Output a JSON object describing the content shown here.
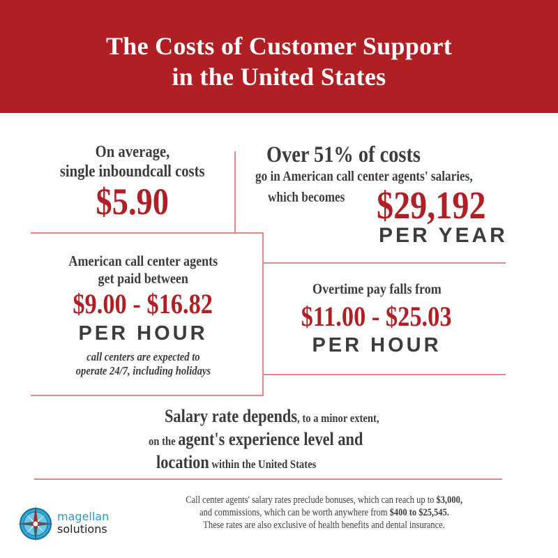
{
  "header": {
    "title_line1": "The Costs of Customer Support",
    "title_line2": "in the United States",
    "background_color": "#b01f24"
  },
  "blocks": {
    "inbound": {
      "line1": "On average,",
      "line2": "single inboundcall costs",
      "value": "$5.90"
    },
    "salaries": {
      "headline": "Over 51% of costs",
      "line2": "go in American call center agents' salaries,",
      "line3": "which becomes",
      "value": "$29,192",
      "unit": "PER YEAR"
    },
    "hourly": {
      "line1": "American call center agents",
      "line2": "get paid between",
      "value": "$9.00 - $16.82",
      "unit": "PER HOUR",
      "note_line1": "call centers are expected to",
      "note_line2": "operate 24/7, including holidays"
    },
    "overtime": {
      "line1": "Overtime pay falls from",
      "value": "$11.00 - $25.03",
      "unit": "PER HOUR"
    },
    "salary_rate": {
      "l1_bold": "Salary rate depends",
      "l1_rest": ", to a minor extent,",
      "l2_pre": "on the ",
      "l2_bold": "agent's experience level and",
      "l3_bold": "location",
      "l3_rest": " within the United States"
    }
  },
  "footer": {
    "line1_pre": "Call center agents' salary rates preclude bonuses, which can reach up to ",
    "line1_bold": "$3,000,",
    "line2_pre": "and commissions, which can be worth anywhere from ",
    "line2_bold": "$400 to $25,545.",
    "line3": "These rates are also exclusive of health benefits and dental insurance."
  },
  "logo": {
    "icon": "compass-icon",
    "line1": "magellan",
    "line2": "solutions",
    "line1_color": "#1aa3cf",
    "line2_color": "#222222"
  },
  "colors": {
    "accent": "#b01f24",
    "divider": "#e8848a",
    "text": "#3c3c3c"
  }
}
